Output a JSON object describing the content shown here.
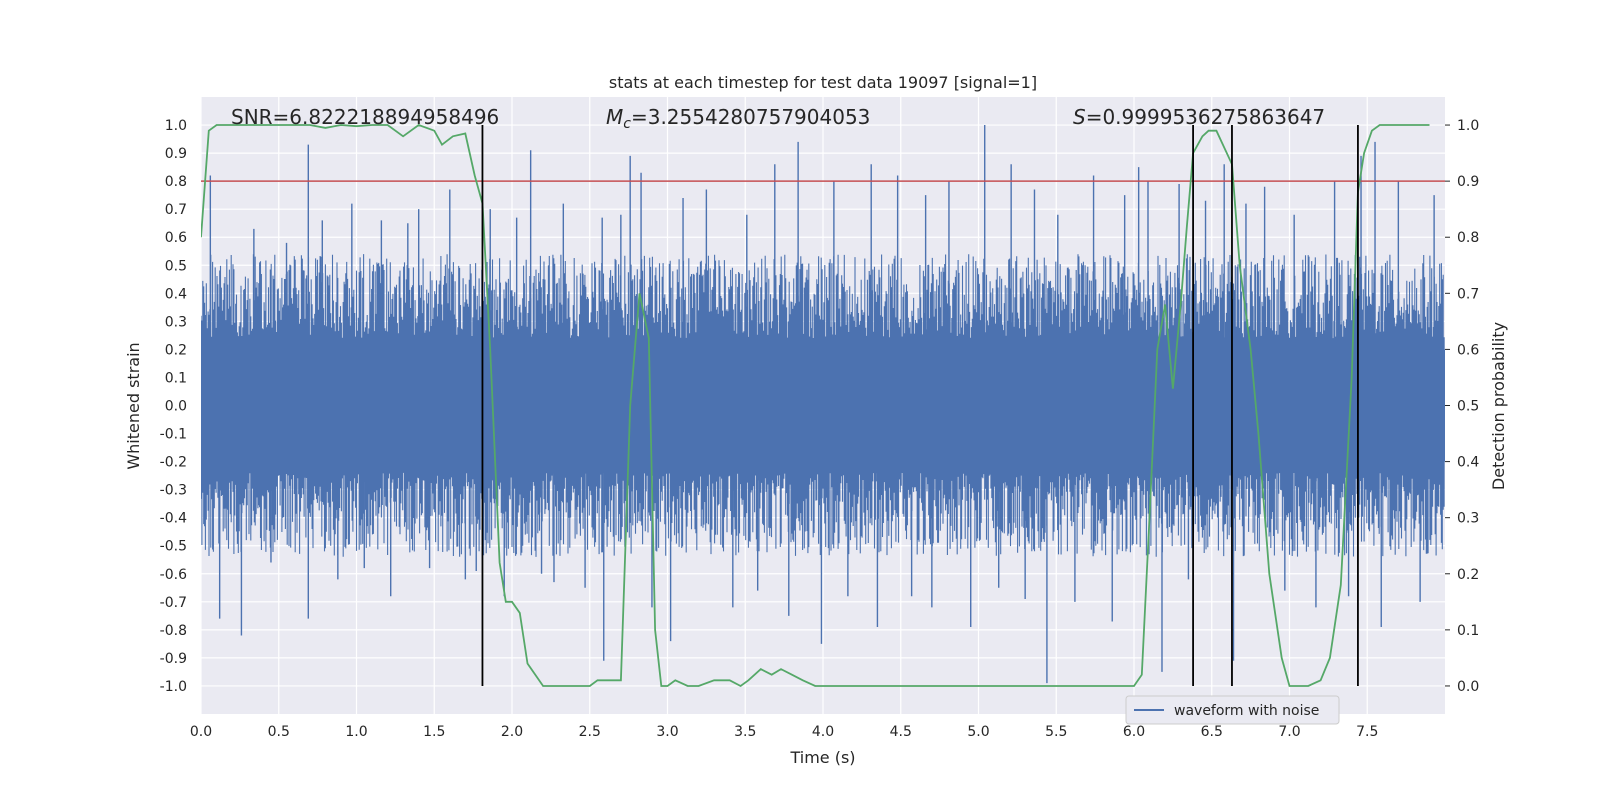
{
  "chart_data": {
    "type": "line",
    "title": "stats at each timestep for test data 19097 [signal=1]",
    "xlabel": "Time (s)",
    "ylabel": "Whitened strain",
    "y2label": "Detection probability",
    "xlim": [
      0.0,
      8.0
    ],
    "ylim": [
      -1.1,
      1.1
    ],
    "y2lim": [
      -0.05,
      1.05
    ],
    "xticks": [
      "0.0",
      "0.5",
      "1.0",
      "1.5",
      "2.0",
      "2.5",
      "3.0",
      "3.5",
      "4.0",
      "4.5",
      "5.0",
      "5.5",
      "6.0",
      "6.5",
      "7.0",
      "7.5"
    ],
    "yticks": [
      "1.0",
      "0.9",
      "0.8",
      "0.7",
      "0.6",
      "0.5",
      "0.4",
      "0.3",
      "0.2",
      "0.1",
      "0.0",
      "-0.1",
      "-0.2",
      "-0.3",
      "-0.4",
      "-0.5",
      "-0.6",
      "-0.7",
      "-0.8",
      "-0.9",
      "-1.0"
    ],
    "y2ticks": [
      "1.0",
      "0.9",
      "0.8",
      "0.7",
      "0.6",
      "0.5",
      "0.4",
      "0.3",
      "0.2",
      "0.1",
      "0.0"
    ],
    "annotations": {
      "snr": "SNR=6.822218894958496",
      "mc_symbol": "M",
      "mc_sub": "c",
      "mc_value": "=3.2554280757904053",
      "s_symbol": "S",
      "s_value": "=0.9999536275863647"
    },
    "threshold": {
      "value": 0.9,
      "axis": "y2",
      "color": "#c44e52"
    },
    "vertical_lines": [
      1.81,
      6.38,
      6.63,
      7.44
    ],
    "waveform": {
      "name": "waveform with noise",
      "color": "#4c72b0",
      "band": 0.4,
      "spikes": [
        [
          0.06,
          0.82
        ],
        [
          0.12,
          -0.76
        ],
        [
          0.26,
          -0.82
        ],
        [
          0.34,
          0.63
        ],
        [
          0.45,
          -0.56
        ],
        [
          0.55,
          0.58
        ],
        [
          0.69,
          0.93
        ],
        [
          0.69,
          -0.76
        ],
        [
          0.78,
          0.66
        ],
        [
          0.88,
          -0.62
        ],
        [
          0.97,
          0.72
        ],
        [
          1.05,
          -0.58
        ],
        [
          1.16,
          0.66
        ],
        [
          1.22,
          -0.68
        ],
        [
          1.33,
          0.65
        ],
        [
          1.4,
          0.7
        ],
        [
          1.47,
          -0.58
        ],
        [
          1.6,
          0.77
        ],
        [
          1.7,
          -0.62
        ],
        [
          1.77,
          -0.59
        ],
        [
          1.86,
          0.7
        ],
        [
          1.95,
          -0.68
        ],
        [
          2.03,
          0.67
        ],
        [
          2.12,
          0.91
        ],
        [
          2.19,
          -0.6
        ],
        [
          2.27,
          -0.63
        ],
        [
          2.33,
          0.72
        ],
        [
          2.47,
          -0.65
        ],
        [
          2.58,
          0.67
        ],
        [
          2.59,
          -0.91
        ],
        [
          2.7,
          0.68
        ],
        [
          2.76,
          0.89
        ],
        [
          2.83,
          0.83
        ],
        [
          2.9,
          -0.72
        ],
        [
          3.02,
          -0.84
        ],
        [
          3.1,
          0.74
        ],
        [
          3.25,
          0.77
        ],
        [
          3.42,
          -0.72
        ],
        [
          3.51,
          0.68
        ],
        [
          3.58,
          -0.66
        ],
        [
          3.69,
          0.86
        ],
        [
          3.78,
          -0.75
        ],
        [
          3.84,
          0.94
        ],
        [
          3.99,
          -0.85
        ],
        [
          4.07,
          0.8
        ],
        [
          4.16,
          -0.68
        ],
        [
          4.31,
          0.86
        ],
        [
          4.35,
          -0.79
        ],
        [
          4.48,
          0.82
        ],
        [
          4.57,
          -0.68
        ],
        [
          4.66,
          0.75
        ],
        [
          4.7,
          -0.72
        ],
        [
          4.81,
          0.8
        ],
        [
          4.95,
          -0.79
        ],
        [
          5.04,
          1.0
        ],
        [
          5.13,
          -0.65
        ],
        [
          5.21,
          0.86
        ],
        [
          5.3,
          -0.69
        ],
        [
          5.36,
          0.77
        ],
        [
          5.44,
          -0.99
        ],
        [
          5.51,
          0.68
        ],
        [
          5.62,
          -0.7
        ],
        [
          5.74,
          0.82
        ],
        [
          5.86,
          -0.77
        ],
        [
          5.94,
          0.75
        ],
        [
          6.03,
          0.85
        ],
        [
          6.09,
          0.8
        ],
        [
          6.18,
          -0.95
        ],
        [
          6.29,
          0.79
        ],
        [
          6.35,
          -0.62
        ],
        [
          6.46,
          0.73
        ],
        [
          6.58,
          0.86
        ],
        [
          6.64,
          -0.91
        ],
        [
          6.72,
          0.72
        ],
        [
          6.84,
          0.78
        ],
        [
          6.97,
          -0.66
        ],
        [
          7.03,
          0.68
        ],
        [
          7.17,
          -0.72
        ],
        [
          7.29,
          0.8
        ],
        [
          7.38,
          -0.68
        ],
        [
          7.46,
          0.89
        ],
        [
          7.55,
          0.94
        ],
        [
          7.59,
          -0.79
        ],
        [
          7.7,
          0.8
        ],
        [
          7.84,
          -0.7
        ],
        [
          7.93,
          0.75
        ]
      ]
    },
    "probability": {
      "name": "detection probability",
      "color": "#55a868",
      "x": [
        0.0,
        0.05,
        0.1,
        0.2,
        0.3,
        0.4,
        0.5,
        0.6,
        0.7,
        0.8,
        0.9,
        1.0,
        1.1,
        1.2,
        1.3,
        1.4,
        1.5,
        1.55,
        1.62,
        1.7,
        1.76,
        1.81,
        1.86,
        1.92,
        1.96,
        2.0,
        2.05,
        2.1,
        2.2,
        2.3,
        2.4,
        2.5,
        2.55,
        2.6,
        2.7,
        2.76,
        2.82,
        2.88,
        2.92,
        2.96,
        3.0,
        3.05,
        3.13,
        3.2,
        3.3,
        3.4,
        3.47,
        3.52,
        3.6,
        3.67,
        3.73,
        3.8,
        3.87,
        3.95,
        4.1,
        4.3,
        4.6,
        4.9,
        5.2,
        5.5,
        5.8,
        6.0,
        6.05,
        6.1,
        6.15,
        6.2,
        6.25,
        6.3,
        6.34,
        6.38,
        6.44,
        6.48,
        6.53,
        6.58,
        6.63,
        6.68,
        6.75,
        6.8,
        6.87,
        6.95,
        7.0,
        7.07,
        7.12,
        7.2,
        7.26,
        7.33,
        7.4,
        7.44,
        7.48,
        7.53,
        7.58,
        7.7,
        7.8,
        7.9
      ],
      "y": [
        0.8,
        0.99,
        1.0,
        1.0,
        1.0,
        1.0,
        1.0,
        1.0,
        1.0,
        0.995,
        1.0,
        0.998,
        1.0,
        1.0,
        0.98,
        1.0,
        0.99,
        0.965,
        0.98,
        0.985,
        0.91,
        0.86,
        0.6,
        0.22,
        0.15,
        0.15,
        0.13,
        0.04,
        0.0,
        0.0,
        0.0,
        0.0,
        0.01,
        0.01,
        0.01,
        0.5,
        0.7,
        0.62,
        0.1,
        0.0,
        0.0,
        0.01,
        0.0,
        0.0,
        0.01,
        0.01,
        0.0,
        0.01,
        0.03,
        0.02,
        0.03,
        0.02,
        0.01,
        0.0,
        0.0,
        0.0,
        0.0,
        0.0,
        0.0,
        0.0,
        0.0,
        0.0,
        0.02,
        0.3,
        0.6,
        0.68,
        0.53,
        0.68,
        0.82,
        0.95,
        0.98,
        0.99,
        0.99,
        0.96,
        0.93,
        0.75,
        0.6,
        0.45,
        0.2,
        0.05,
        0.0,
        0.0,
        0.0,
        0.01,
        0.05,
        0.18,
        0.55,
        0.88,
        0.95,
        0.99,
        1.0,
        1.0,
        1.0,
        1.0
      ]
    },
    "legend": {
      "label": "waveform with noise",
      "position": "lower-right"
    }
  }
}
